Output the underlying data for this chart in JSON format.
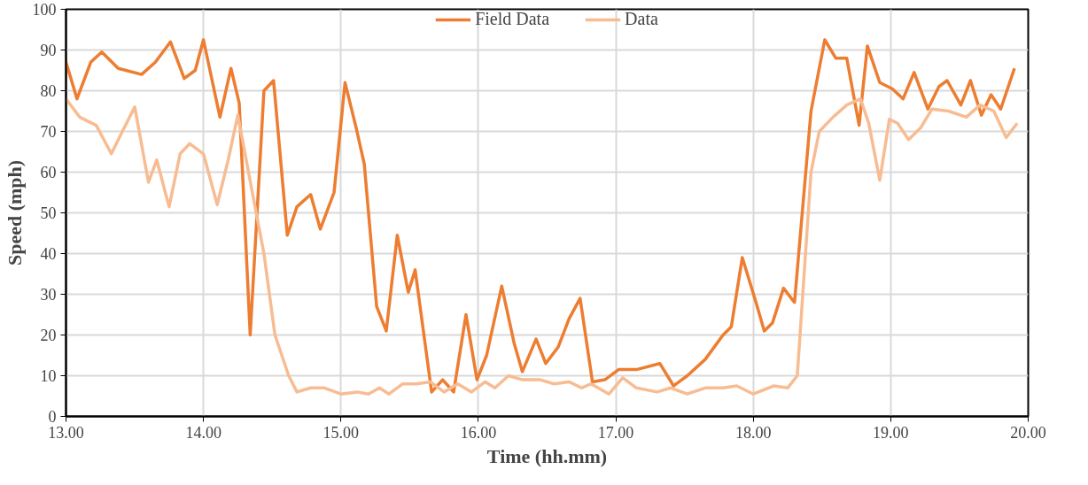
{
  "chart_data": {
    "type": "line",
    "xlabel": "Time (hh.mm)",
    "ylabel": "Speed (mph)",
    "xlim": [
      13,
      20
    ],
    "ylim": [
      0,
      100
    ],
    "xticks": [
      {
        "value": 13,
        "label": "13.00"
      },
      {
        "value": 14,
        "label": "14.00"
      },
      {
        "value": 15,
        "label": "15.00"
      },
      {
        "value": 16,
        "label": "16.00"
      },
      {
        "value": 17,
        "label": "17.00"
      },
      {
        "value": 18,
        "label": "18.00"
      },
      {
        "value": 19,
        "label": "19.00"
      },
      {
        "value": 20,
        "label": "20.00"
      }
    ],
    "yticks": [
      0,
      10,
      20,
      30,
      40,
      50,
      60,
      70,
      80,
      90,
      100
    ],
    "grid": true,
    "legend": "top",
    "marker": "none",
    "line_style": "solid",
    "series": [
      {
        "name": "Field Data",
        "color": "#ed7d31",
        "x": [
          13.0,
          13.08,
          13.18,
          13.26,
          13.38,
          13.55,
          13.65,
          13.76,
          13.86,
          13.94,
          14.0,
          14.12,
          14.2,
          14.26,
          14.34,
          14.44,
          14.51,
          14.61,
          14.68,
          14.78,
          14.85,
          14.95,
          15.03,
          15.11,
          15.17,
          15.26,
          15.33,
          15.41,
          15.49,
          15.54,
          15.66,
          15.74,
          15.82,
          15.91,
          15.99,
          16.06,
          16.17,
          16.26,
          16.32,
          16.42,
          16.49,
          16.58,
          16.66,
          16.74,
          16.83,
          16.92,
          17.02,
          17.15,
          17.32,
          17.42,
          17.52,
          17.65,
          17.78,
          17.84,
          17.92,
          18.02,
          18.08,
          18.14,
          18.22,
          18.3,
          18.42,
          18.52,
          18.6,
          18.68,
          18.77,
          18.83,
          18.92,
          19.01,
          19.09,
          19.17,
          19.27,
          19.35,
          19.41,
          19.51,
          19.58,
          19.66,
          19.73,
          19.8,
          19.9
        ],
        "values": [
          87,
          78,
          87,
          89.5,
          85.5,
          84,
          87,
          92,
          83,
          85,
          92.5,
          73.5,
          85.5,
          77,
          20,
          80,
          82.5,
          44.5,
          51.5,
          54.5,
          46,
          55,
          82,
          71,
          62,
          27,
          21,
          44.5,
          30.5,
          36,
          6,
          9,
          6,
          25,
          9,
          15,
          32,
          18,
          11,
          19,
          13,
          17,
          24,
          29,
          8.5,
          9,
          11.5,
          11.5,
          13,
          7.5,
          10,
          14,
          20,
          22,
          39,
          28,
          21,
          23,
          31.5,
          28,
          75,
          92.5,
          88,
          88,
          71.5,
          91,
          82,
          80.5,
          78,
          84.5,
          75.5,
          81,
          82.5,
          76.5,
          82.5,
          74,
          79,
          75.5,
          85.5
        ]
      },
      {
        "name": "Data",
        "color": "#f8bc93",
        "x": [
          13.0,
          13.1,
          13.22,
          13.33,
          13.41,
          13.5,
          13.6,
          13.66,
          13.75,
          13.83,
          13.9,
          14.0,
          14.1,
          14.18,
          14.25,
          14.35,
          14.44,
          14.52,
          14.62,
          14.68,
          14.78,
          14.88,
          15.0,
          15.12,
          15.2,
          15.28,
          15.35,
          15.45,
          15.55,
          15.65,
          15.75,
          15.85,
          15.95,
          16.05,
          16.12,
          16.22,
          16.32,
          16.45,
          16.55,
          16.66,
          16.75,
          16.82,
          16.95,
          17.05,
          17.15,
          17.3,
          17.4,
          17.52,
          17.65,
          17.78,
          17.88,
          18.0,
          18.15,
          18.25,
          18.32,
          18.36,
          18.42,
          18.48,
          18.58,
          18.68,
          18.78,
          18.84,
          18.92,
          18.99,
          19.05,
          19.13,
          19.22,
          19.3,
          19.42,
          19.55,
          19.65,
          19.75,
          19.84,
          19.92
        ],
        "values": [
          78,
          73.5,
          71.5,
          64.5,
          70,
          76,
          57.5,
          63,
          51.5,
          64.5,
          67,
          64.5,
          52,
          63,
          74,
          56,
          40,
          20,
          10,
          6,
          7,
          7,
          5.5,
          6,
          5.5,
          7,
          5.5,
          8,
          8,
          8.5,
          6,
          8,
          6,
          8.5,
          7,
          10,
          9,
          9,
          8,
          8.5,
          7,
          8,
          5.5,
          9.5,
          7,
          6,
          7,
          5.5,
          7,
          7,
          7.5,
          5.5,
          7.5,
          7,
          10,
          30,
          60,
          70,
          73.5,
          76.5,
          78,
          72,
          58,
          73,
          72,
          68,
          71,
          75.5,
          75,
          73.5,
          76.5,
          75,
          68.5,
          72
        ]
      }
    ]
  }
}
